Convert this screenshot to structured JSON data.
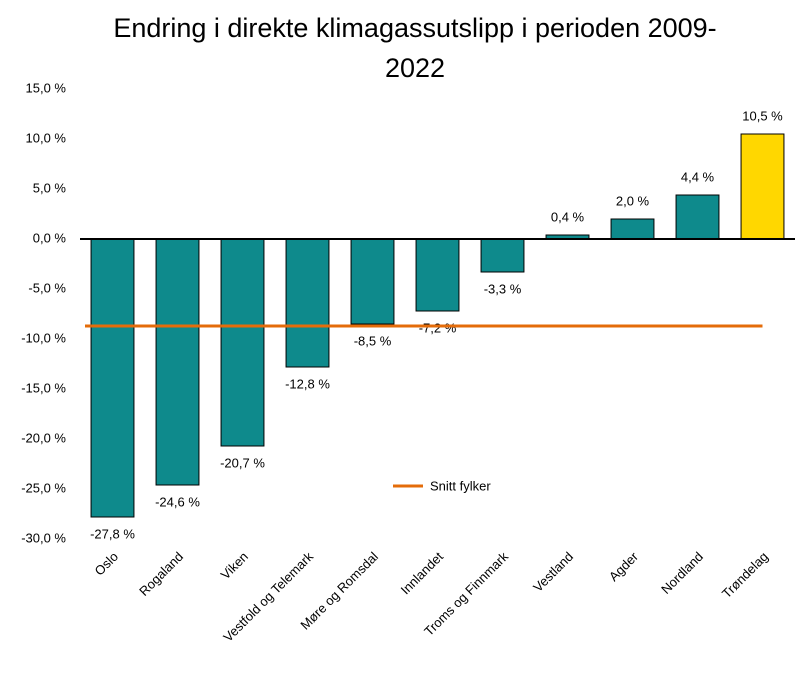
{
  "chart_data": {
    "type": "bar",
    "title": "Endring i direkte klimagassutslipp i perioden 2009-2022",
    "categories": [
      "Oslo",
      "Rogaland",
      "Viken",
      "Vestfold og Telemark",
      "Møre og Romsdal",
      "Innlandet",
      "Troms og Finnmark",
      "Vestland",
      "Agder",
      "Nordland",
      "Trøndelag"
    ],
    "values": [
      -27.8,
      -24.6,
      -20.7,
      -12.8,
      -8.5,
      -7.2,
      -3.3,
      0.4,
      2.0,
      4.4,
      10.5
    ],
    "value_labels": [
      "-27,8 %",
      "-24,6 %",
      "-20,7 %",
      "-12,8 %",
      "-8,5 %",
      "-7,2 %",
      "-3,3 %",
      "0,4 %",
      "2,0 %",
      "4,4 %",
      "10,5 %"
    ],
    "colors": [
      "#0E8A8C",
      "#0E8A8C",
      "#0E8A8C",
      "#0E8A8C",
      "#0E8A8C",
      "#0E8A8C",
      "#0E8A8C",
      "#0E8A8C",
      "#0E8A8C",
      "#0E8A8C",
      "#FFD700"
    ],
    "average": {
      "name": "Snitt fylker",
      "value": -8.7,
      "color": "#E46C0A"
    },
    "ylim": [
      -30,
      15
    ],
    "yticks": [
      {
        "value": -30,
        "label": "-30,0 %"
      },
      {
        "value": -25,
        "label": "-25,0 %"
      },
      {
        "value": -20,
        "label": "-20,0 %"
      },
      {
        "value": -15,
        "label": "-15,0 %"
      },
      {
        "value": -10,
        "label": "-10,0 %"
      },
      {
        "value": -5,
        "label": "-5,0 %"
      },
      {
        "value": 0,
        "label": "0,0 %"
      },
      {
        "value": 5,
        "label": "5,0 %"
      },
      {
        "value": 10,
        "label": "10,0 %"
      },
      {
        "value": 15,
        "label": "15,0 %"
      }
    ],
    "legend": "bottom"
  }
}
